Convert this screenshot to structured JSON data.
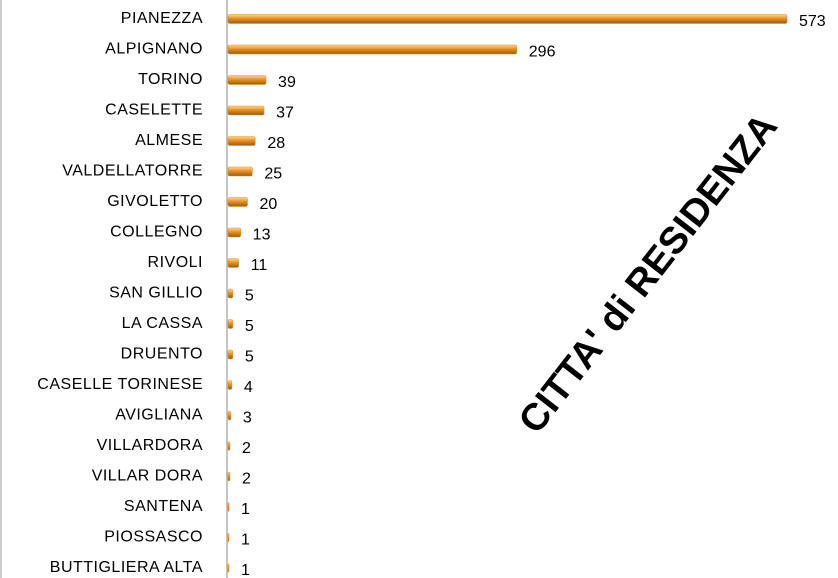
{
  "chart_data": {
    "type": "bar",
    "orientation": "horizontal",
    "annotation": "CITTA' di RESIDENZA",
    "categories": [
      "PIANEZZA",
      "ALPIGNANO",
      "TORINO",
      "CASELETTE",
      "ALMESE",
      "VALDELLATORRE",
      "GIVOLETTO",
      "COLLEGNO",
      "RIVOLI",
      "SAN GILLIO",
      "LA CASSA",
      "DRUENTO",
      "CASELLE TORINESE",
      "AVIGLIANA",
      "VILLARDORA",
      "VILLAR DORA",
      "SANTENA",
      "PIOSSASCO",
      "BUTTIGLIERA ALTA"
    ],
    "values": [
      573,
      296,
      39,
      37,
      28,
      25,
      20,
      13,
      11,
      5,
      5,
      5,
      4,
      3,
      2,
      2,
      1,
      1,
      1
    ],
    "color": "#e8901e"
  }
}
